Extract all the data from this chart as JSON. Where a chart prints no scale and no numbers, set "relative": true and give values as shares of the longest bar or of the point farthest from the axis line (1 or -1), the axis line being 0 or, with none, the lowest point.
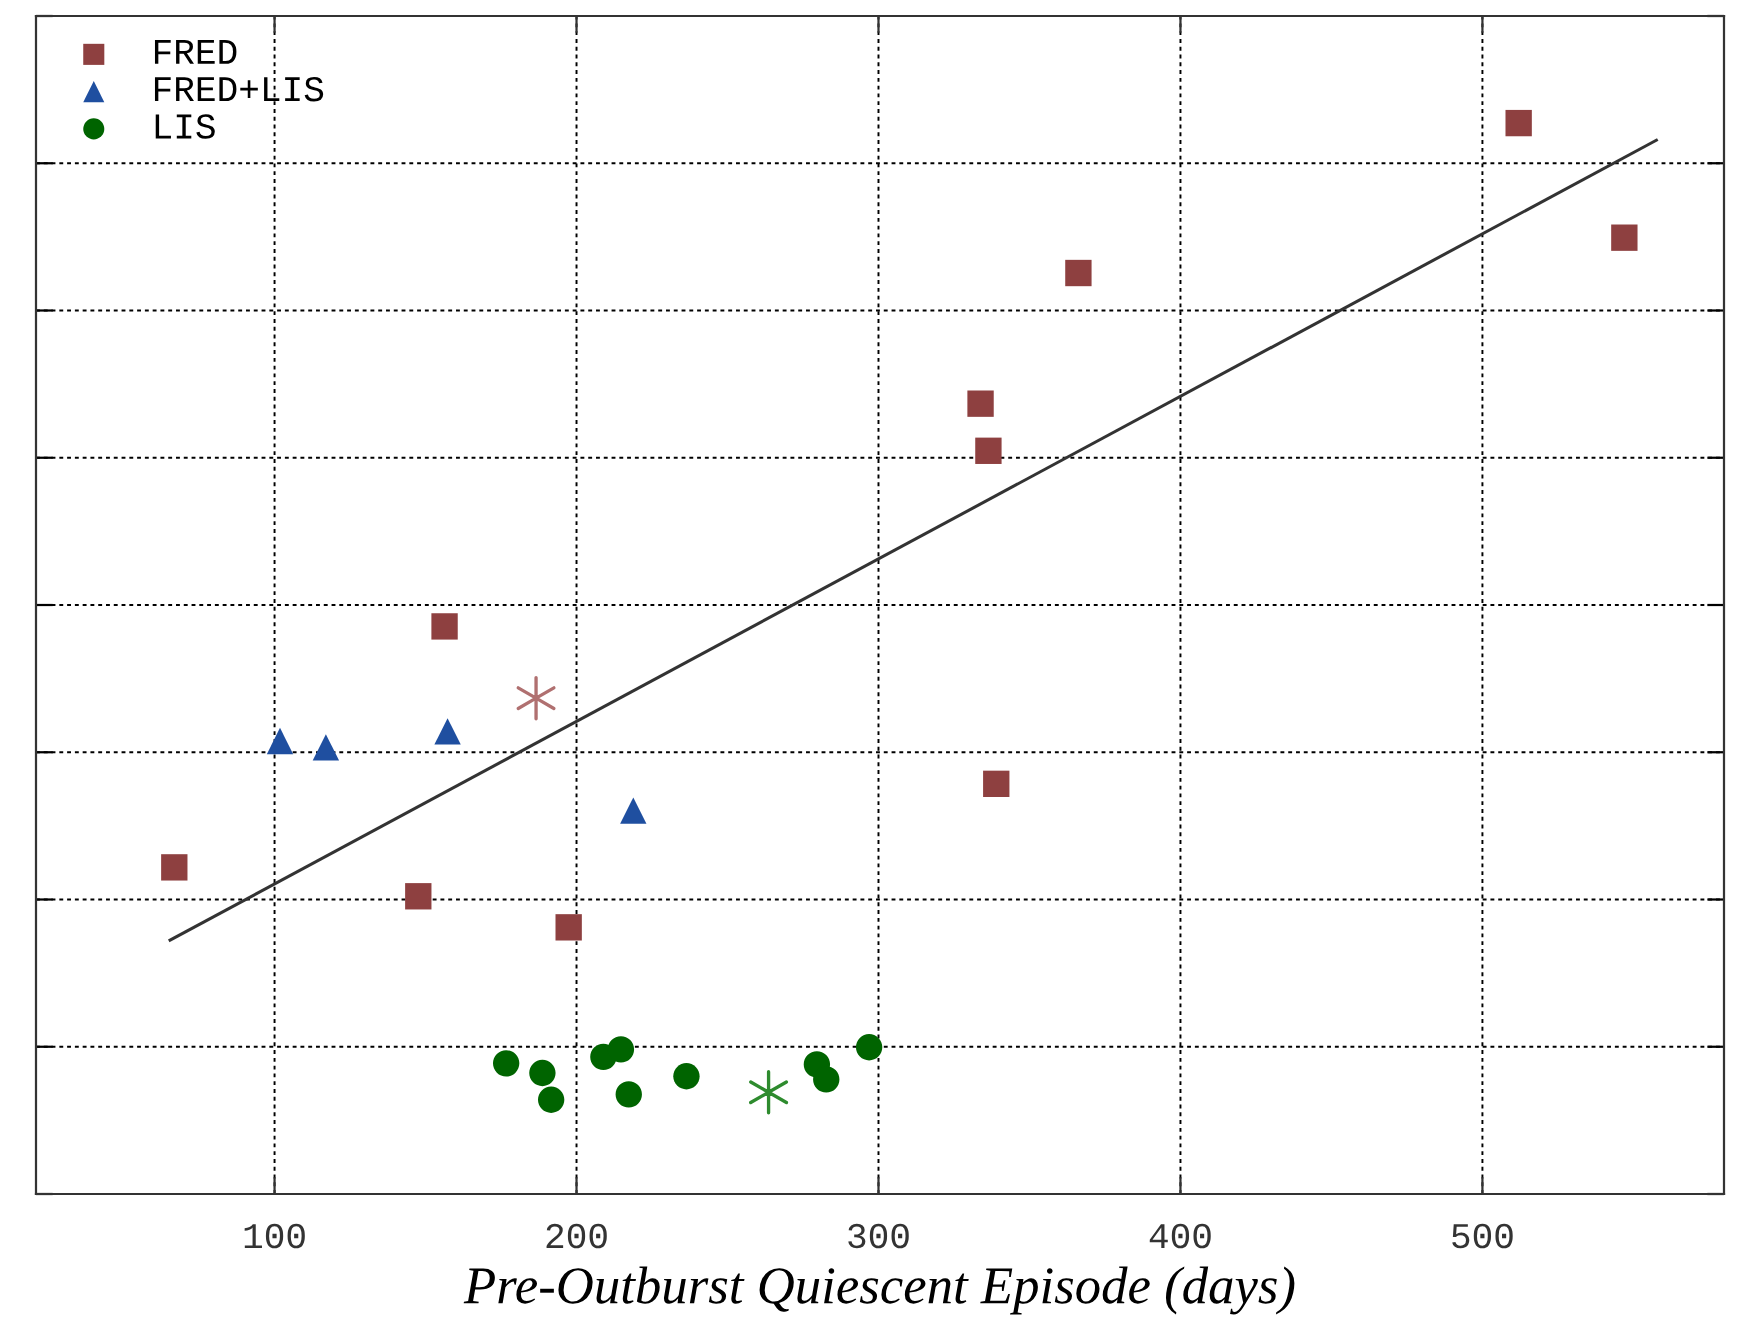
{
  "chart_data": {
    "type": "scatter",
    "xlabel": "Pre-Outburst Quiescent Episode (days)",
    "relative": true,
    "xlim": [
      21,
      580
    ],
    "xticks": [
      100,
      200,
      300,
      400,
      500
    ],
    "tick_labels": "x",
    "grid": true,
    "legend": "top left",
    "series": [
      {
        "name": "FRED",
        "color": "#8e4040",
        "marker": "square",
        "x": [
          66.8,
          156.3,
          147.6,
          197.4,
          333.8,
          336.4,
          366.2,
          339,
          512,
          547
        ],
        "values": [
          0.305,
          0.53,
          0.278,
          0.249,
          0.738,
          0.694,
          0.86,
          0.383,
          1.0,
          0.893
        ]
      },
      {
        "name": "FRED+LIS",
        "color": "#1f4fa0",
        "marker": "triangle",
        "x": [
          101.8,
          117,
          157.3,
          218.8
        ],
        "values": [
          0.423,
          0.417,
          0.432,
          0.358
        ]
      },
      {
        "name": "LIS",
        "color": "#006400",
        "marker": "circle",
        "x": [
          176.7,
          188.7,
          191.6,
          208.9,
          214.7,
          217.3,
          236.4,
          279.6,
          282.7,
          296.9
        ],
        "values": [
          0.122,
          0.113,
          0.088,
          0.128,
          0.135,
          0.093,
          0.11,
          0.121,
          0.107,
          0.137
        ]
      },
      {
        "color": "#b07070",
        "marker": "cross",
        "x": [
          186.6
        ],
        "values": [
          0.463
        ]
      },
      {
        "color": "#2e8b2e",
        "marker": "cross",
        "x": [
          263.6
        ],
        "values": [
          0.095
        ]
      },
      {
        "type": "line",
        "color": "#333333",
        "marker": "none",
        "line_style": "solid",
        "x": [
          65.4,
          557.6
        ],
        "values": [
          0.237,
          0.984
        ]
      }
    ]
  }
}
